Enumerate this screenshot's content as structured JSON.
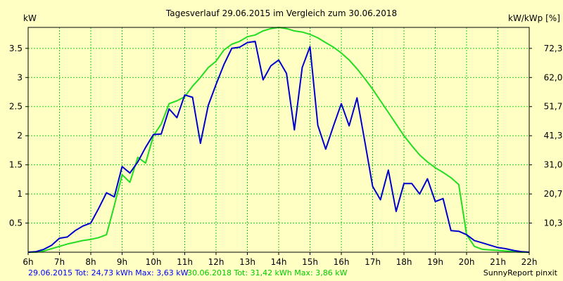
{
  "chart_data": {
    "type": "line",
    "title": "Tagesverlauf 29.06.2015 im Vergleich zum 30.06.2018",
    "ylabel_left": "kW",
    "ylabel_right": "kW/kWp [%]",
    "xlim": [
      6,
      22
    ],
    "ylim": [
      0,
      3.86
    ],
    "x_ticks": [
      {
        "value": 6,
        "label": "6h"
      },
      {
        "value": 7,
        "label": "7h"
      },
      {
        "value": 8,
        "label": "8h"
      },
      {
        "value": 9,
        "label": "9h"
      },
      {
        "value": 10,
        "label": "10h"
      },
      {
        "value": 11,
        "label": "11h"
      },
      {
        "value": 12,
        "label": "12h"
      },
      {
        "value": 13,
        "label": "13h"
      },
      {
        "value": 14,
        "label": "14h"
      },
      {
        "value": 15,
        "label": "15h"
      },
      {
        "value": 16,
        "label": "16h"
      },
      {
        "value": 17,
        "label": "17h"
      },
      {
        "value": 18,
        "label": "18h"
      },
      {
        "value": 19,
        "label": "19h"
      },
      {
        "value": 20,
        "label": "20h"
      },
      {
        "value": 21,
        "label": "21h"
      },
      {
        "value": 22,
        "label": "22h"
      }
    ],
    "y_ticks_left": [
      {
        "value": 0.5,
        "label": "0.5"
      },
      {
        "value": 1,
        "label": "1"
      },
      {
        "value": 1.5,
        "label": "1.5"
      },
      {
        "value": 2,
        "label": "2"
      },
      {
        "value": 2.5,
        "label": "2.5"
      },
      {
        "value": 3,
        "label": "3"
      },
      {
        "value": 3.5,
        "label": "3.5"
      }
    ],
    "y_ticks_right": [
      {
        "value": 0.5,
        "label": "10,3"
      },
      {
        "value": 1,
        "label": "20,7"
      },
      {
        "value": 1.5,
        "label": "31,0"
      },
      {
        "value": 2,
        "label": "41,3"
      },
      {
        "value": 2.5,
        "label": "51,7"
      },
      {
        "value": 3,
        "label": "62,0"
      },
      {
        "value": 3.5,
        "label": "72,3"
      }
    ],
    "grid": true,
    "series": [
      {
        "name": "29.06.2015",
        "color": "#0000cc",
        "x": [
          6.0,
          6.25,
          6.5,
          6.75,
          7.0,
          7.25,
          7.5,
          7.75,
          8.0,
          8.25,
          8.5,
          8.75,
          9.0,
          9.25,
          9.5,
          9.75,
          10.0,
          10.25,
          10.5,
          10.75,
          11.0,
          11.25,
          11.5,
          11.75,
          12.0,
          12.25,
          12.5,
          12.75,
          13.0,
          13.25,
          13.5,
          13.75,
          14.0,
          14.25,
          14.5,
          14.75,
          15.0,
          15.25,
          15.5,
          15.75,
          16.0,
          16.25,
          16.5,
          16.75,
          17.0,
          17.25,
          17.5,
          17.75,
          18.0,
          18.25,
          18.5,
          18.75,
          19.0,
          19.25,
          19.5,
          19.75,
          20.0,
          20.25,
          20.5,
          20.75,
          21.0,
          21.25,
          21.5,
          21.75,
          22.0
        ],
        "values": [
          0.0,
          0.01,
          0.05,
          0.12,
          0.24,
          0.26,
          0.37,
          0.45,
          0.5,
          0.75,
          1.02,
          0.95,
          1.47,
          1.36,
          1.55,
          1.8,
          2.02,
          2.03,
          2.46,
          2.31,
          2.7,
          2.66,
          1.87,
          2.52,
          2.88,
          3.22,
          3.5,
          3.52,
          3.6,
          3.62,
          2.96,
          3.2,
          3.3,
          3.07,
          2.1,
          3.17,
          3.53,
          2.18,
          1.77,
          2.17,
          2.55,
          2.17,
          2.65,
          1.9,
          1.13,
          0.9,
          1.41,
          0.7,
          1.18,
          1.18,
          1.0,
          1.26,
          0.87,
          0.92,
          0.37,
          0.36,
          0.3,
          0.2,
          0.16,
          0.12,
          0.08,
          0.06,
          0.03,
          0.01,
          0.0
        ]
      },
      {
        "name": "30.06.2018",
        "color": "#22dd22",
        "x": [
          6.0,
          6.25,
          6.5,
          6.75,
          7.0,
          7.25,
          7.5,
          7.75,
          8.0,
          8.25,
          8.5,
          8.75,
          9.0,
          9.25,
          9.5,
          9.75,
          10.0,
          10.25,
          10.5,
          10.75,
          11.0,
          11.25,
          11.5,
          11.75,
          12.0,
          12.25,
          12.5,
          12.75,
          13.0,
          13.25,
          13.5,
          13.75,
          14.0,
          14.25,
          14.5,
          14.75,
          15.0,
          15.25,
          15.5,
          15.75,
          16.0,
          16.25,
          16.5,
          16.75,
          17.0,
          17.25,
          17.5,
          17.75,
          18.0,
          18.25,
          18.5,
          18.75,
          19.0,
          19.25,
          19.5,
          19.75,
          20.0,
          20.25,
          20.5,
          20.75,
          21.0,
          21.25,
          21.5,
          21.75,
          22.0
        ],
        "values": [
          0.0,
          0.0,
          0.02,
          0.06,
          0.1,
          0.14,
          0.17,
          0.2,
          0.22,
          0.25,
          0.3,
          0.8,
          1.33,
          1.2,
          1.63,
          1.53,
          2.0,
          2.2,
          2.55,
          2.6,
          2.67,
          2.85,
          3.0,
          3.17,
          3.28,
          3.47,
          3.57,
          3.62,
          3.7,
          3.73,
          3.8,
          3.84,
          3.86,
          3.84,
          3.8,
          3.78,
          3.74,
          3.68,
          3.6,
          3.52,
          3.42,
          3.3,
          3.15,
          2.98,
          2.8,
          2.6,
          2.4,
          2.2,
          2.0,
          1.83,
          1.67,
          1.55,
          1.45,
          1.37,
          1.28,
          1.16,
          0.3,
          0.1,
          0.05,
          0.04,
          0.03,
          0.02,
          0.01,
          0.0,
          0.0
        ]
      }
    ]
  },
  "footer": {
    "summary_2015": "29.06.2015 Tot: 24,73 kWh Max: 3,63 kW",
    "summary_2018": "30.06.2018 Tot: 31,42 kWh Max: 3,86 kW",
    "credit": "SunnyReport pinxit"
  }
}
